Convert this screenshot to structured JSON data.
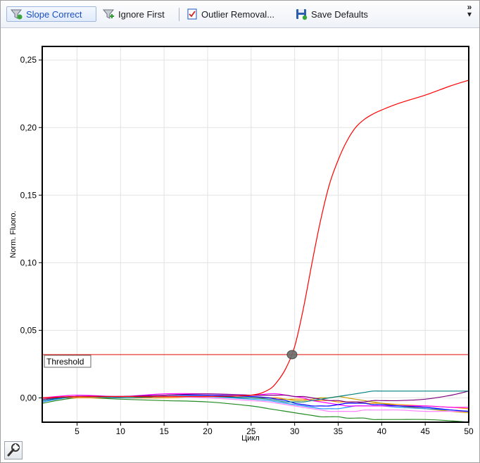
{
  "toolbar": {
    "slope_correct_label": "Slope Correct",
    "ignore_first_label": "Ignore First",
    "outlier_removal_label": "Outlier Removal...",
    "save_defaults_label": "Save Defaults",
    "overflow_glyph": "»"
  },
  "icons": {
    "slope_correct": "funnel-icon",
    "ignore_first": "funnel-plus-icon",
    "outlier_removal": "checklist-icon",
    "save_defaults": "floppy-disk-icon",
    "settings": "wrench-icon"
  },
  "chart_data": {
    "type": "line",
    "xlabel": "Цикл",
    "ylabel": "Norm. Fluoro.",
    "xlim": [
      1,
      50
    ],
    "ylim": [
      -0.018,
      0.26
    ],
    "x_ticks": [
      5,
      10,
      15,
      20,
      25,
      30,
      35,
      40,
      45,
      50
    ],
    "y_ticks": [
      "0,00",
      "0,05",
      "0,10",
      "0,15",
      "0,20",
      "0,25"
    ],
    "y_tick_values": [
      0.0,
      0.05,
      0.1,
      0.15,
      0.2,
      0.25
    ],
    "grid": true,
    "threshold": {
      "label": "Threshold",
      "value": 0.032,
      "color": "#e8201c"
    },
    "crossing_point": {
      "x": 29.7,
      "y": 0.032
    },
    "x": [
      1,
      5,
      10,
      15,
      20,
      25,
      27,
      28,
      29,
      30,
      31,
      32,
      33,
      34,
      35,
      36,
      37,
      38,
      39,
      40,
      42,
      45,
      48,
      50
    ],
    "series": [
      {
        "color": "#ff0000",
        "values": [
          0.0,
          0.001,
          0.001,
          0.001,
          0.001,
          0.002,
          0.006,
          0.012,
          0.022,
          0.038,
          0.066,
          0.1,
          0.132,
          0.158,
          0.176,
          0.19,
          0.2,
          0.206,
          0.21,
          0.213,
          0.218,
          0.224,
          0.231,
          0.235
        ]
      },
      {
        "color": "#008080",
        "values": [
          -0.002,
          0.001,
          0.0,
          0.001,
          0.001,
          0.0,
          -0.001,
          -0.002,
          -0.003,
          -0.003,
          -0.003,
          -0.002,
          -0.001,
          0.0,
          0.001,
          0.002,
          0.003,
          0.004,
          0.005,
          0.005,
          0.005,
          0.005,
          0.005,
          0.005
        ]
      },
      {
        "color": "#800080",
        "values": [
          -0.001,
          0.001,
          0.001,
          0.002,
          0.003,
          0.002,
          0.002,
          0.002,
          0.002,
          0.001,
          0.001,
          0.0,
          -0.001,
          -0.002,
          -0.002,
          -0.003,
          -0.003,
          -0.003,
          -0.002,
          -0.002,
          -0.002,
          -0.001,
          0.002,
          0.005
        ]
      },
      {
        "color": "#0000ff",
        "values": [
          -0.002,
          0.001,
          0.001,
          0.002,
          0.002,
          0.001,
          0.0,
          -0.001,
          -0.002,
          -0.004,
          -0.005,
          -0.006,
          -0.006,
          -0.006,
          -0.005,
          -0.004,
          -0.004,
          -0.004,
          -0.005,
          -0.005,
          -0.006,
          -0.007,
          -0.009,
          -0.01
        ]
      },
      {
        "color": "#ff00ff",
        "values": [
          0.0,
          0.002,
          0.001,
          0.003,
          0.003,
          0.002,
          0.003,
          0.003,
          0.002,
          0.001,
          0.0,
          -0.002,
          -0.003,
          -0.004,
          -0.005,
          -0.006,
          -0.006,
          -0.006,
          -0.006,
          -0.006,
          -0.006,
          -0.006,
          -0.007,
          -0.007
        ]
      },
      {
        "color": "#1e90ff",
        "values": [
          -0.003,
          0.001,
          0.0,
          0.001,
          0.001,
          -0.001,
          -0.002,
          -0.003,
          -0.004,
          -0.005,
          -0.006,
          -0.007,
          -0.008,
          -0.008,
          -0.008,
          -0.007,
          -0.006,
          -0.006,
          -0.006,
          -0.006,
          -0.007,
          -0.008,
          -0.009,
          -0.01
        ]
      },
      {
        "color": "#ff80ff",
        "values": [
          -0.001,
          0.001,
          0.0,
          0.001,
          0.0,
          -0.002,
          -0.003,
          -0.004,
          -0.005,
          -0.006,
          -0.007,
          -0.008,
          -0.009,
          -0.01,
          -0.01,
          -0.01,
          -0.01,
          -0.009,
          -0.009,
          -0.009,
          -0.009,
          -0.01,
          -0.01,
          -0.01
        ]
      },
      {
        "color": "#c8a000",
        "values": [
          -0.001,
          0.001,
          0.0,
          0.001,
          0.001,
          0.0,
          0.0,
          -0.001,
          -0.001,
          -0.002,
          -0.002,
          -0.001,
          0.0,
          0.0,
          0.001,
          0.0,
          -0.001,
          -0.002,
          -0.003,
          -0.004,
          -0.006,
          -0.008,
          -0.01,
          -0.011
        ]
      },
      {
        "color": "#ff8c00",
        "values": [
          0.0,
          0.0,
          0.0,
          0.0,
          0.001,
          0.0,
          0.0,
          0.0,
          -0.001,
          -0.001,
          -0.001,
          -0.002,
          -0.002,
          -0.002,
          -0.003,
          -0.003,
          -0.003,
          -0.004,
          -0.004,
          -0.004,
          -0.005,
          -0.006,
          -0.007,
          -0.008
        ]
      },
      {
        "color": "#228b22",
        "values": [
          -0.004,
          0.0,
          -0.001,
          -0.002,
          -0.003,
          -0.006,
          -0.008,
          -0.009,
          -0.01,
          -0.011,
          -0.012,
          -0.013,
          -0.014,
          -0.014,
          -0.014,
          -0.015,
          -0.015,
          -0.015,
          -0.016,
          -0.016,
          -0.016,
          -0.016,
          -0.017,
          -0.018
        ]
      }
    ]
  }
}
